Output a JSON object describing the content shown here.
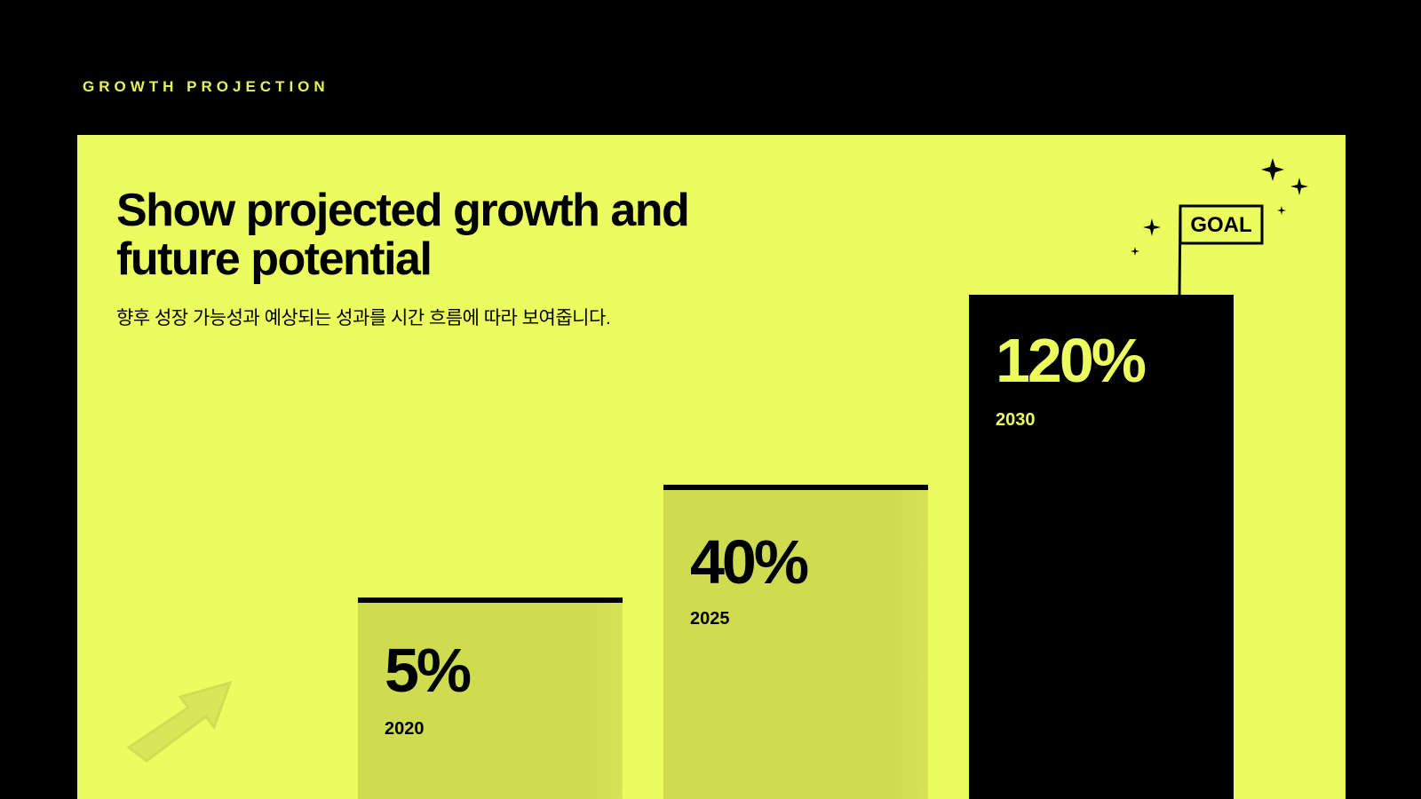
{
  "header": {
    "label": "GROWTH PROJECTION"
  },
  "title": {
    "line1": "Show projected growth and",
    "line2": "future potential"
  },
  "subtitle": "향후 성장 가능성과 예상되는 성과를 시간 흐름에 따라 보여줍니다.",
  "steps": [
    {
      "value": "5%",
      "year": "2020"
    },
    {
      "value": "40%",
      "year": "2025"
    },
    {
      "value": "120%",
      "year": "2030"
    }
  ],
  "goal": "GOAL"
}
